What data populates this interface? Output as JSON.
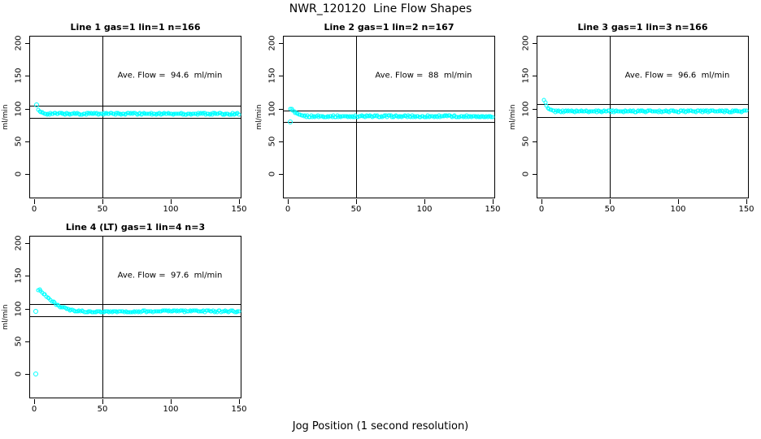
{
  "page": {
    "title": "NWR_120120  Line Flow Shapes",
    "x_axis_title": "Jog Position (1 second resolution)",
    "y_axis_label": "ml/min"
  },
  "colors": {
    "point": "#00ffff",
    "axis": "#000000",
    "background": "#ffffff"
  },
  "axes": {
    "x_ticks": [
      0,
      50,
      100,
      150
    ],
    "y_ticks": [
      0,
      50,
      100,
      150,
      200
    ],
    "x_range": [
      0,
      150
    ],
    "y_range": [
      0,
      200
    ],
    "grid": false
  },
  "chart_data": [
    {
      "type": "scatter",
      "title": "Line 1 gas=1 lin=1 n=166",
      "annotation": "Ave. Flow =  94.6  ml/min",
      "ave_flow": 94.6,
      "n": 166,
      "ref_lines_h": [
        104.1,
        85.1
      ],
      "v_line_x": 50,
      "outliers": [
        [
          2,
          105
        ]
      ],
      "profile": [
        [
          3,
          98
        ],
        [
          4,
          95
        ],
        [
          6,
          93
        ],
        [
          8,
          92
        ],
        [
          12,
          92
        ],
        [
          30,
          92
        ],
        [
          60,
          92
        ],
        [
          100,
          92
        ],
        [
          150,
          92
        ]
      ],
      "points_from": 3,
      "points_to": 150,
      "points_count": 165
    },
    {
      "type": "scatter",
      "title": "Line 2 gas=1 lin=2 n=167",
      "annotation": "Ave. Flow =  88  ml/min",
      "ave_flow": 88,
      "n": 167,
      "ref_lines_h": [
        96.8,
        79.2
      ],
      "v_line_x": 50,
      "outliers": [
        [
          2,
          80
        ]
      ],
      "profile": [
        [
          2,
          101
        ],
        [
          3,
          99
        ],
        [
          4,
          96
        ],
        [
          5,
          94
        ],
        [
          6,
          92
        ],
        [
          8,
          90
        ],
        [
          10,
          89
        ],
        [
          15,
          88
        ],
        [
          30,
          88
        ],
        [
          150,
          88
        ]
      ],
      "points_from": 2,
      "points_to": 150,
      "points_count": 166
    },
    {
      "type": "scatter",
      "title": "Line 3 gas=1 lin=3 n=166",
      "annotation": "Ave. Flow =  96.6  ml/min",
      "ave_flow": 96.6,
      "n": 166,
      "ref_lines_h": [
        106.3,
        86.9
      ],
      "v_line_x": 50,
      "outliers": [],
      "profile": [
        [
          2,
          113
        ],
        [
          3,
          108
        ],
        [
          4,
          103
        ],
        [
          5,
          100
        ],
        [
          6,
          98
        ],
        [
          8,
          97
        ],
        [
          10,
          96
        ],
        [
          15,
          96
        ],
        [
          30,
          96
        ],
        [
          150,
          96
        ]
      ],
      "points_from": 2,
      "points_to": 150,
      "points_count": 166
    },
    {
      "type": "scatter",
      "title": "Line 4 (LT) gas=1 lin=4 n=3",
      "annotation": "Ave. Flow =  97.6  ml/min",
      "ave_flow": 97.6,
      "n": 3,
      "ref_lines_h": [
        107.4,
        87.8
      ],
      "v_line_x": 50,
      "outliers": [
        [
          1,
          96
        ],
        [
          1,
          0
        ]
      ],
      "profile": [
        [
          3,
          129
        ],
        [
          5,
          127
        ],
        [
          7,
          123
        ],
        [
          9,
          119
        ],
        [
          11,
          115
        ],
        [
          13,
          111
        ],
        [
          15,
          108
        ],
        [
          17,
          105
        ],
        [
          19,
          103
        ],
        [
          21,
          101
        ],
        [
          24,
          99
        ],
        [
          27,
          97
        ],
        [
          30,
          96
        ],
        [
          40,
          95
        ],
        [
          60,
          95
        ],
        [
          100,
          96
        ],
        [
          150,
          96
        ]
      ],
      "points_from": 3,
      "points_to": 150,
      "points_count": 148
    }
  ]
}
